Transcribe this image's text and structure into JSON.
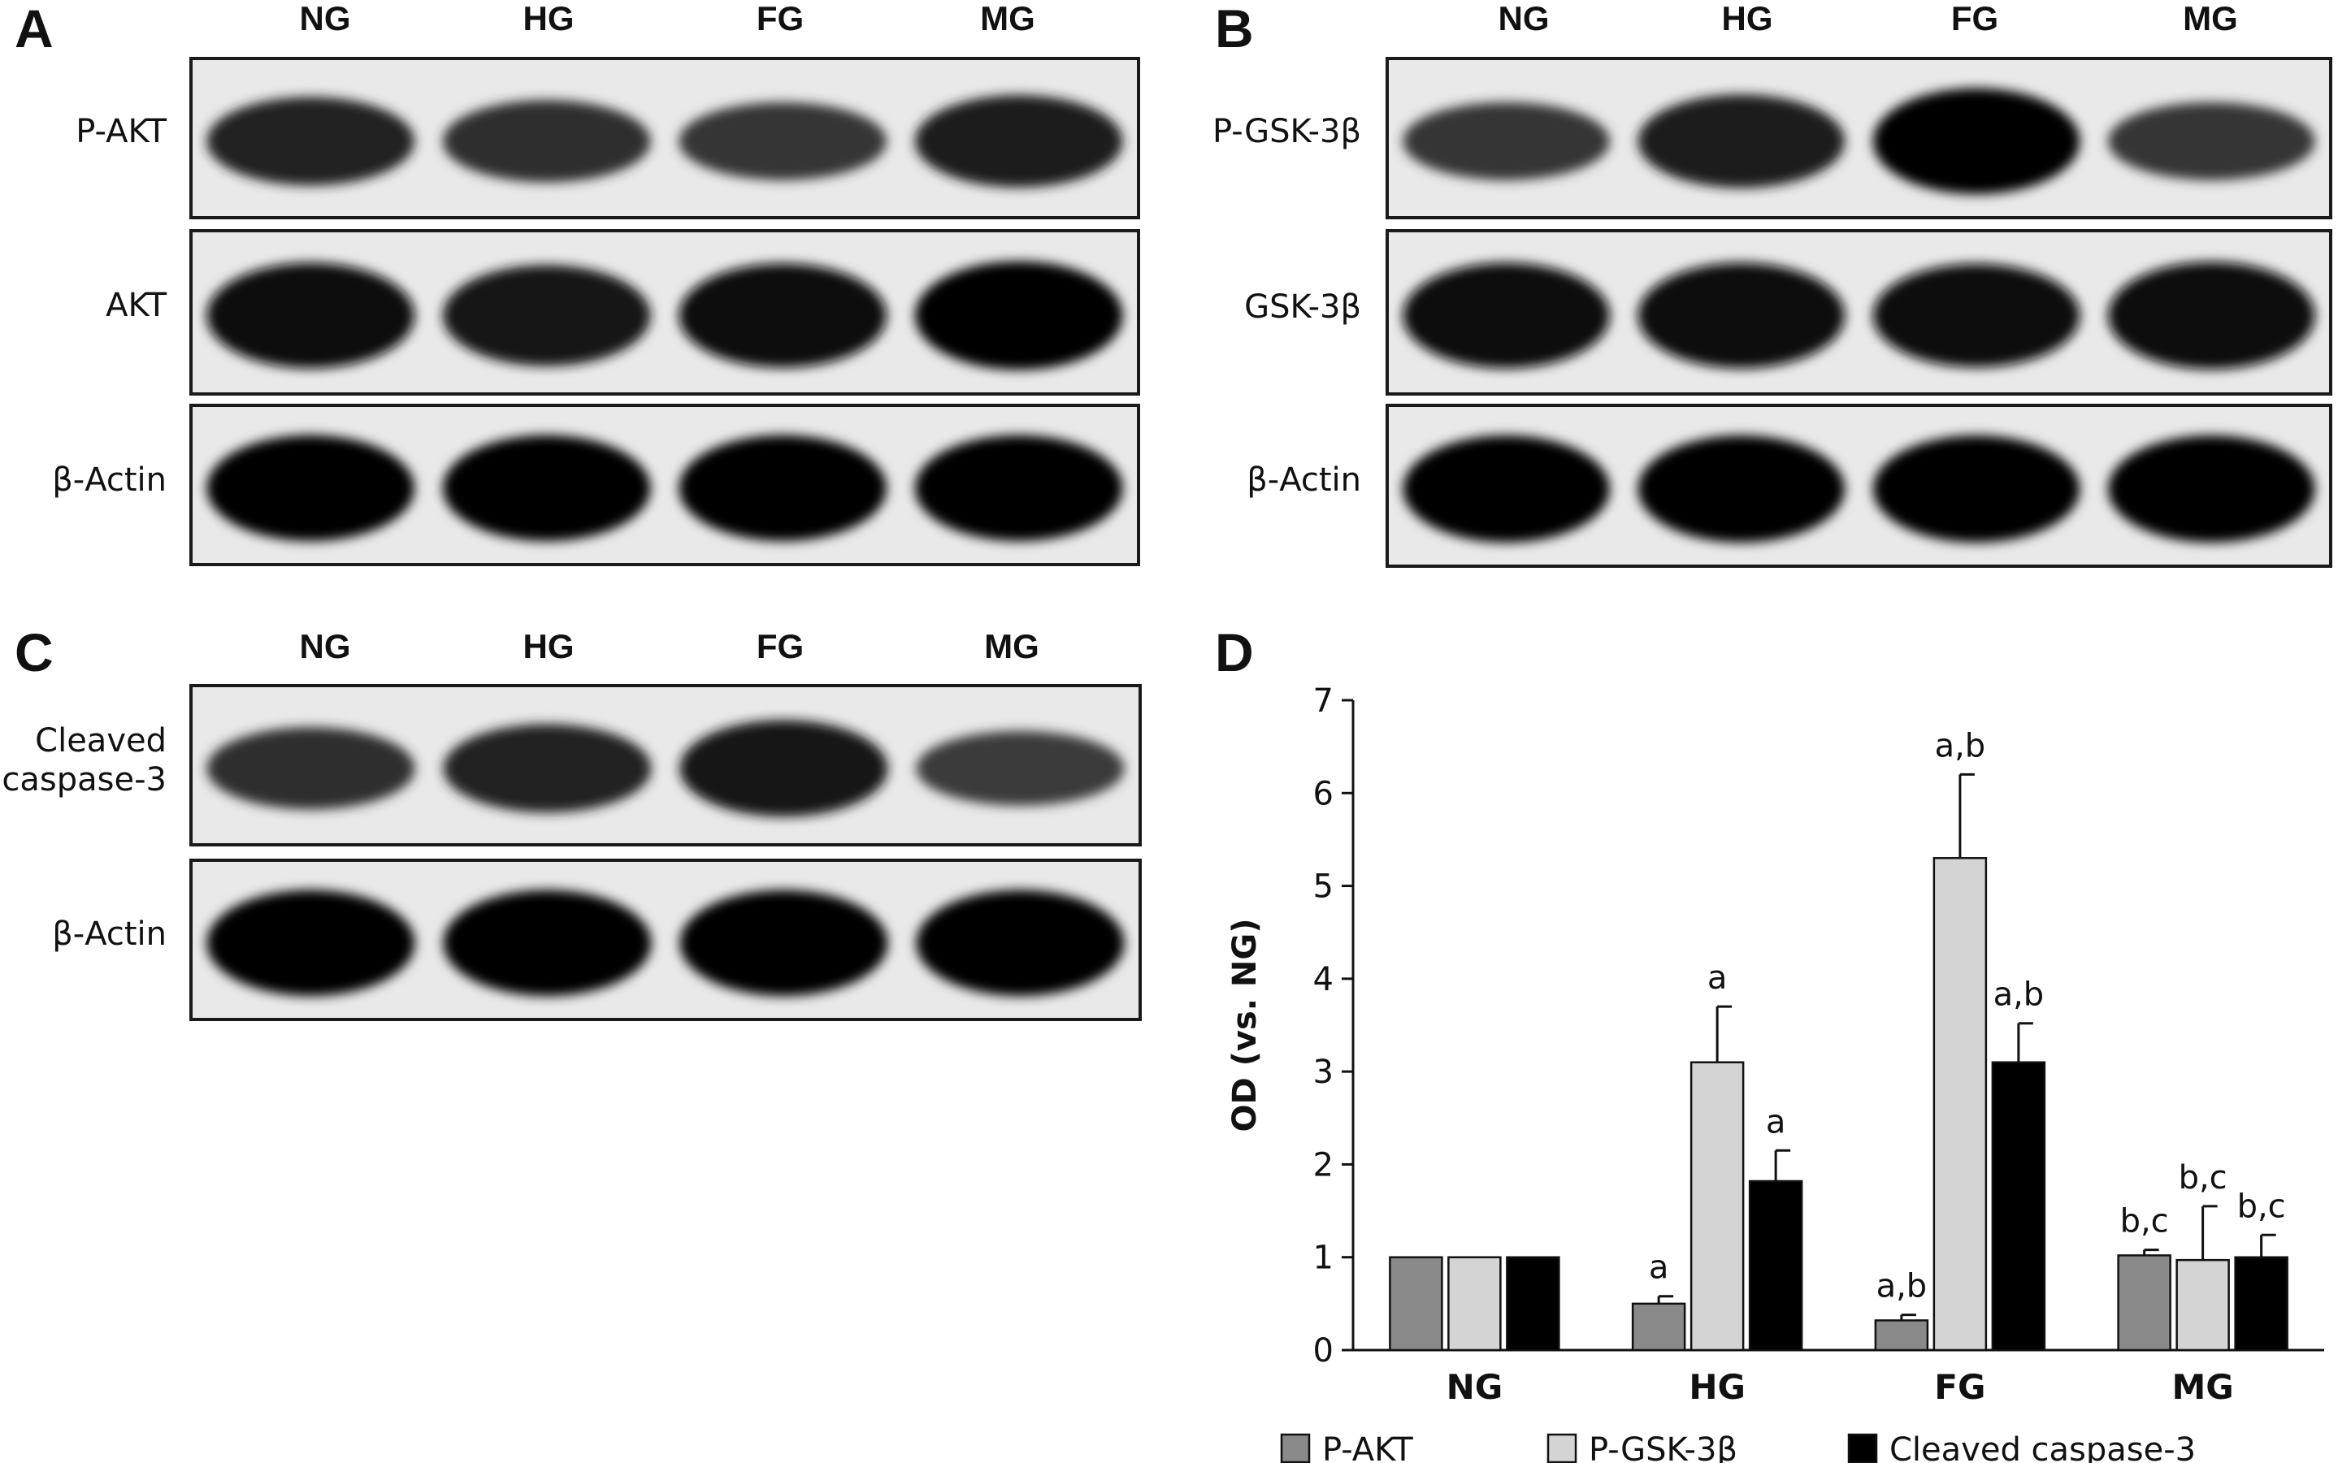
{
  "panels": {
    "A": {
      "letter": "A",
      "lanes": [
        "NG",
        "HG",
        "FG",
        "MG"
      ],
      "rows": [
        {
          "label": "P-AKT",
          "bands": [
            0.72,
            0.62,
            0.55,
            0.78
          ]
        },
        {
          "label": "AKT",
          "bands": [
            0.95,
            0.88,
            0.93,
            1.0
          ]
        },
        {
          "label": "β-Actin",
          "bands": [
            1.0,
            1.0,
            1.0,
            1.0
          ]
        }
      ]
    },
    "B": {
      "letter": "B",
      "lanes": [
        "NG",
        "HG",
        "FG",
        "MG"
      ],
      "rows": [
        {
          "label": "P-GSK-3β",
          "bands": [
            0.55,
            0.8,
            1.0,
            0.55
          ]
        },
        {
          "label": "GSK-3β",
          "bands": [
            0.95,
            0.95,
            0.92,
            0.98
          ]
        },
        {
          "label": "β-Actin",
          "bands": [
            1.0,
            1.0,
            1.0,
            1.0
          ]
        }
      ]
    },
    "C": {
      "letter": "C",
      "lanes": [
        "NG",
        "HG",
        "FG",
        "MG"
      ],
      "rows": [
        {
          "label": "Cleaved caspase-3",
          "label_lines": [
            "Cleaved",
            "caspase-3"
          ],
          "bands": [
            0.62,
            0.72,
            0.85,
            0.5
          ]
        },
        {
          "label": "β-Actin",
          "bands": [
            1.0,
            1.0,
            1.0,
            1.0
          ]
        }
      ]
    }
  },
  "panel_D_letter": "D",
  "chart_data": {
    "type": "bar",
    "ylabel": "OD (vs. NG)",
    "ylim": [
      0,
      7
    ],
    "yticks": [
      0,
      1,
      2,
      3,
      4,
      5,
      6,
      7
    ],
    "categories": [
      "NG",
      "HG",
      "FG",
      "MG"
    ],
    "series": [
      {
        "name": "P-AKT",
        "color": "#8a8a8a",
        "values": [
          1.0,
          0.5,
          0.32,
          1.02
        ],
        "errors": [
          0,
          0.08,
          0.06,
          0.06
        ],
        "annotations": [
          "",
          "a",
          "a,b",
          "b,c"
        ]
      },
      {
        "name": "P-GSK-3β",
        "color": "#d4d4d4",
        "values": [
          1.0,
          3.1,
          5.3,
          0.97
        ],
        "errors": [
          0,
          0.6,
          0.9,
          0.58
        ],
        "annotations": [
          "",
          "a",
          "a,b",
          "b,c"
        ]
      },
      {
        "name": "Cleaved caspase-3",
        "color": "#000000",
        "values": [
          1.0,
          1.82,
          3.1,
          1.0
        ],
        "errors": [
          0,
          0.33,
          0.42,
          0.24
        ],
        "annotations": [
          "",
          "a",
          "a,b",
          "b,c"
        ]
      }
    ],
    "legend_position": "bottom",
    "grid": false
  }
}
